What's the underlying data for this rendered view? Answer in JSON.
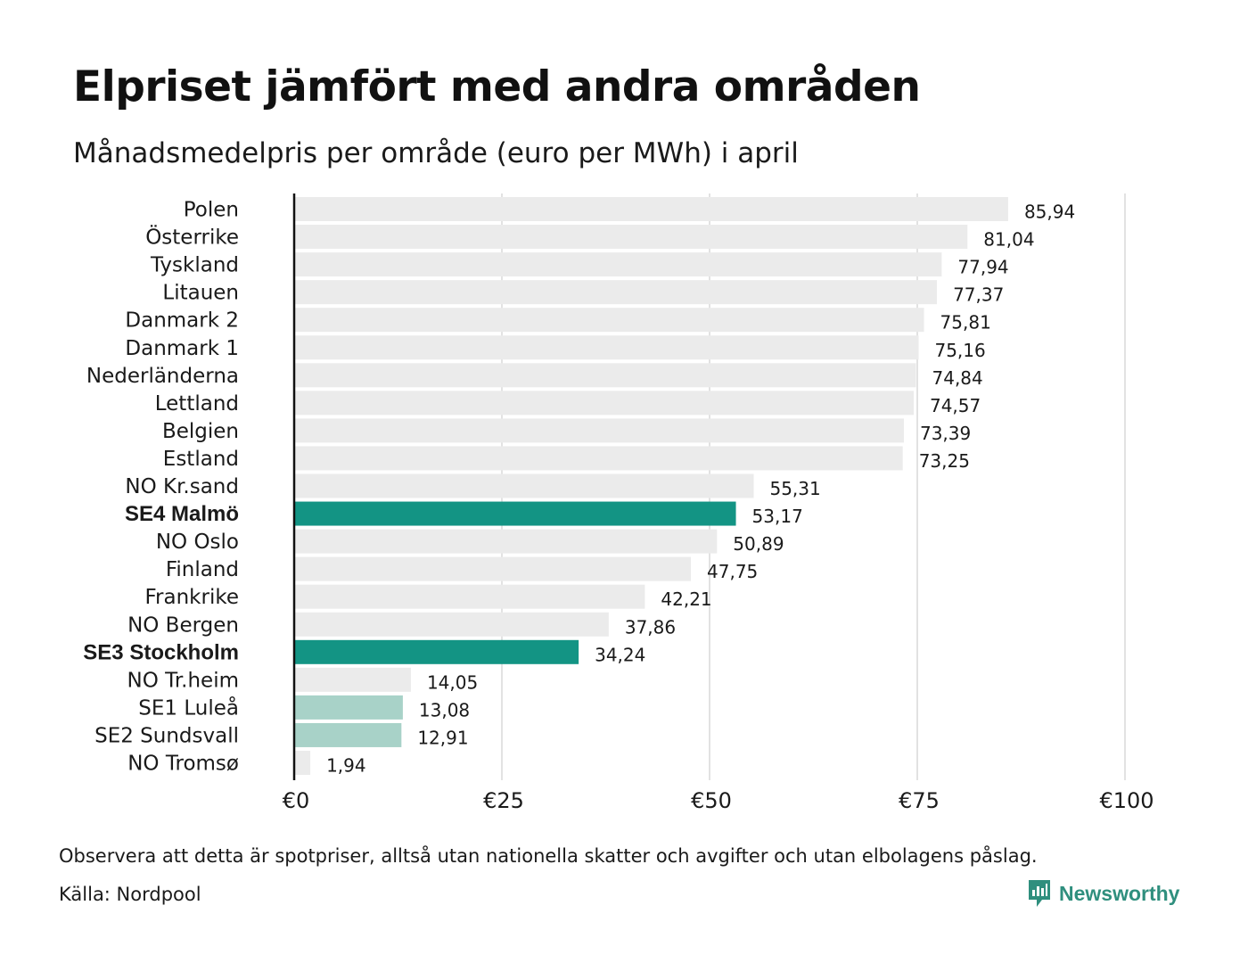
{
  "title": "Elpriset jämfört med andra områden",
  "subtitle": "Månadsmedelpris per område (euro per MWh) i april",
  "note": "Observera att detta är spotpriser, alltså utan nationella skatter och avgifter och utan elbolagens påslag.",
  "source": "Källa: Nordpool",
  "brand": {
    "name": "Newsworthy",
    "icon": "newsworthy-logo-icon",
    "color": "#2f8f7e"
  },
  "colors": {
    "default_bar": "#ebebeb",
    "highlight_bar": "#139484",
    "light_highlight_bar": "#a8d2c8",
    "gridline": "#cfcfcf",
    "axis": "#111111"
  },
  "chart_data": {
    "type": "bar",
    "orientation": "horizontal",
    "grid": true,
    "xlim": [
      0,
      100
    ],
    "x_ticks": [
      0,
      25,
      50,
      75,
      100
    ],
    "x_tick_labels": [
      "€0",
      "€25",
      "€50",
      "€75",
      "€100"
    ],
    "categories": [
      "Polen",
      "Österrike",
      "Tyskland",
      "Litauen",
      "Danmark 2",
      "Danmark 1",
      "Nederländerna",
      "Lettland",
      "Belgien",
      "Estland",
      "NO Kr.sand",
      "SE4 Malmö",
      "NO Oslo",
      "Finland",
      "Frankrike",
      "NO Bergen",
      "SE3 Stockholm",
      "NO Tr.heim",
      "SE1 Luleå",
      "SE2 Sundsvall",
      "NO Tromsø"
    ],
    "values": [
      85.94,
      81.04,
      77.94,
      77.37,
      75.81,
      75.16,
      74.84,
      74.57,
      73.39,
      73.25,
      55.31,
      53.17,
      50.89,
      47.75,
      42.21,
      37.86,
      34.24,
      14.05,
      13.08,
      12.91,
      1.94
    ],
    "value_labels": [
      "85,94",
      "81,04",
      "77,94",
      "77,37",
      "75,81",
      "75,16",
      "74,84",
      "74,57",
      "73,39",
      "73,25",
      "55,31",
      "53,17",
      "50,89",
      "47,75",
      "42,21",
      "37,86",
      "34,24",
      "14,05",
      "13,08",
      "12,91",
      "1,94"
    ],
    "highlight": [
      "SE4 Malmö",
      "SE3 Stockholm"
    ],
    "light_highlight": [
      "SE1 Luleå",
      "SE2 Sundsvall"
    ],
    "bold_labels": [
      "SE4 Malmö",
      "SE3 Stockholm"
    ]
  }
}
